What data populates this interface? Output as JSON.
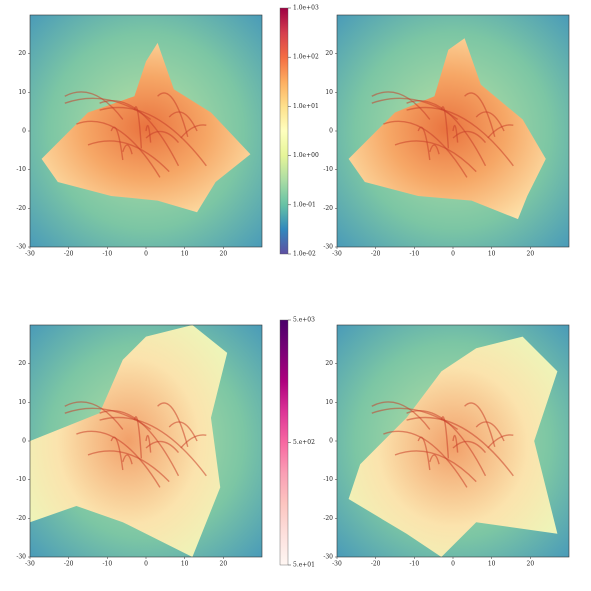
{
  "chart_data": [
    {
      "type": "image",
      "xlim": [
        -30,
        30
      ],
      "ylim": [
        -30,
        30
      ],
      "xticks": [
        -30,
        -20,
        -10,
        0,
        10,
        20
      ],
      "yticks": [
        -30,
        -20,
        -10,
        0,
        10,
        20
      ]
    },
    {
      "type": "image",
      "xlim": [
        -30,
        30
      ],
      "ylim": [
        -30,
        30
      ],
      "xticks": [
        -30,
        -20,
        -10,
        0,
        10,
        20
      ],
      "yticks": [
        -30,
        -20,
        -10,
        0,
        10,
        20
      ]
    },
    {
      "type": "image",
      "xlim": [
        -30,
        30
      ],
      "ylim": [
        -30,
        30
      ],
      "xticks": [
        -30,
        -20,
        -10,
        0,
        10,
        20
      ],
      "yticks": [
        -30,
        -20,
        -10,
        0,
        10,
        20
      ]
    },
    {
      "type": "image",
      "xlim": [
        -30,
        30
      ],
      "ylim": [
        -30,
        30
      ],
      "xticks": [
        -30,
        -20,
        -10,
        0,
        10,
        20
      ],
      "yticks": [
        -30,
        -20,
        -10,
        0,
        10,
        20
      ]
    },
    {
      "type": "colorbar",
      "log_scale": true,
      "ylim": [
        0.01,
        1000
      ],
      "colors": [
        "#5e4fa2",
        "#3288bd",
        "#66c2a5",
        "#abdda4",
        "#e6f598",
        "#ffffbf",
        "#fee08b",
        "#fdae61",
        "#f46d43",
        "#d53e4f",
        "#9e0142"
      ],
      "yticks": [
        {
          "value": 1000,
          "label": "1.0e+03"
        },
        {
          "value": 100,
          "label": "1.0e+02"
        },
        {
          "value": 10,
          "label": "1.0e+01"
        },
        {
          "value": 1,
          "label": "1.0e+00"
        },
        {
          "value": 0.1,
          "label": "1.0e-01"
        },
        {
          "value": 0.01,
          "label": "1.0e-02"
        }
      ]
    },
    {
      "type": "colorbar",
      "log_scale": true,
      "ylim": [
        50,
        5000
      ],
      "colors": [
        "#fff7f3",
        "#fde0dd",
        "#fcc5c0",
        "#fa9fb5",
        "#f768a1",
        "#dd3497",
        "#ae017e",
        "#7a0177",
        "#49006a"
      ],
      "yticks": [
        {
          "value": 5000,
          "label": "5.e+03"
        },
        {
          "value": 500,
          "label": "5.e+02"
        },
        {
          "value": 50,
          "label": "5.e+01"
        }
      ]
    }
  ]
}
